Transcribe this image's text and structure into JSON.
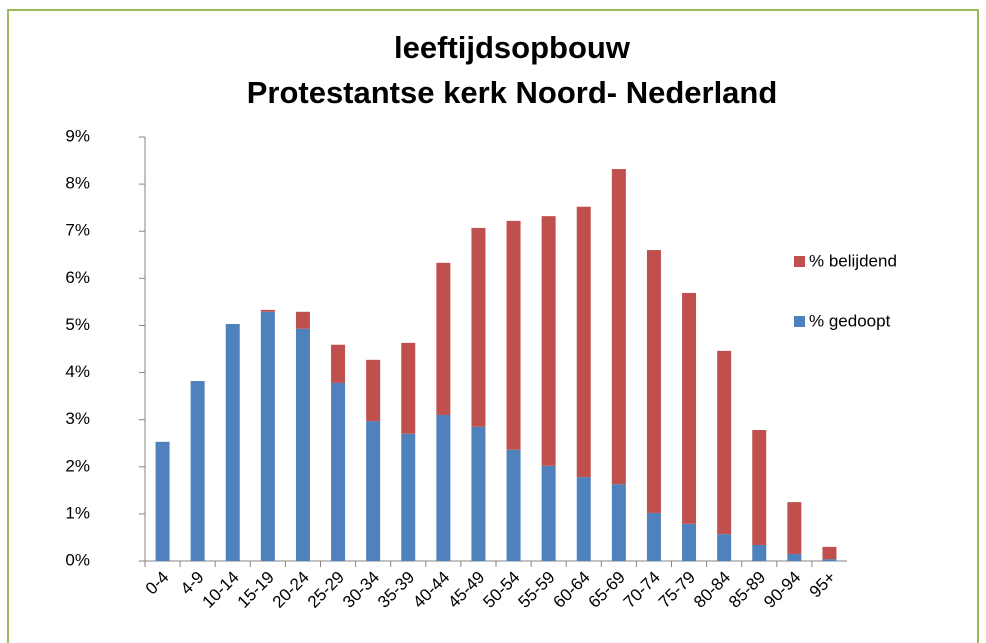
{
  "chart_data": {
    "type": "stacked_bar",
    "title": "leeftijdsopbouw",
    "subtitle": "Protestantse kerk Noord- Nederland",
    "categories": [
      "0-4",
      "4-9",
      "10-14",
      "15-19",
      "20-24",
      "25-29",
      "30-34",
      "35-39",
      "40-44",
      "45-49",
      "50-54",
      "55-59",
      "60-64",
      "65-69",
      "70-74",
      "75-79",
      "80-84",
      "85-89",
      "90-94",
      "95+"
    ],
    "series": [
      {
        "name": "% gedoopt",
        "color": "#4f81bd",
        "values": [
          2.53,
          3.82,
          5.03,
          5.29,
          4.93,
          3.78,
          2.97,
          2.7,
          3.1,
          2.85,
          2.36,
          2.02,
          1.78,
          1.63,
          1.02,
          0.79,
          0.57,
          0.34,
          0.15,
          0.04
        ]
      },
      {
        "name": "% belijdend",
        "color": "#c0504d",
        "values": [
          0,
          0,
          0,
          0.04,
          0.36,
          0.81,
          1.3,
          1.93,
          3.23,
          4.22,
          4.86,
          5.3,
          5.74,
          6.69,
          5.58,
          4.9,
          3.89,
          2.44,
          1.1,
          0.26
        ]
      }
    ],
    "ylim": [
      0,
      9
    ],
    "yticks": [
      {
        "value": 0,
        "label": "0%"
      },
      {
        "value": 1,
        "label": "1%"
      },
      {
        "value": 2,
        "label": "2%"
      },
      {
        "value": 3,
        "label": "3%"
      },
      {
        "value": 4,
        "label": "4%"
      },
      {
        "value": 5,
        "label": "5%"
      },
      {
        "value": 6,
        "label": "6%"
      },
      {
        "value": 7,
        "label": "7%"
      },
      {
        "value": 8,
        "label": "8%"
      },
      {
        "value": 9,
        "label": "9%"
      }
    ],
    "legend": "right"
  }
}
